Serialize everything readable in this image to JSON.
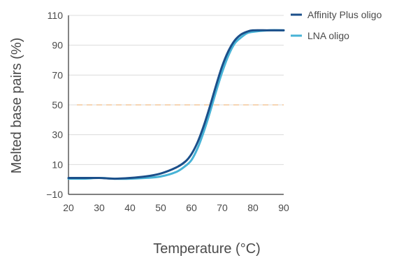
{
  "chart_data": {
    "type": "line",
    "title": "",
    "xlabel": "Temperature (°C)",
    "ylabel": "Melted base pairs (%)",
    "xlim": [
      20,
      90
    ],
    "ylim": [
      -10,
      110
    ],
    "xticks": [
      "20",
      "30",
      "40",
      "50",
      "60",
      "70",
      "80",
      "90"
    ],
    "yticks": [
      "−10",
      "10",
      "30",
      "50",
      "70",
      "90",
      "110"
    ],
    "grid": "horizontal",
    "legend_position": "top-right",
    "reference_line": {
      "y": 50,
      "style": "dashed",
      "color": "#f4c79a"
    },
    "series": [
      {
        "name": "Affinity Plus oligo",
        "color": "#1b4f8a",
        "x": [
          20,
          25,
          30,
          35,
          40,
          45,
          50,
          55,
          58,
          60,
          62,
          64,
          66,
          68,
          70,
          72,
          74,
          76,
          78,
          80,
          85,
          90
        ],
        "y": [
          1,
          1,
          1,
          0.5,
          1,
          2,
          4,
          8,
          12,
          17,
          25,
          36,
          49,
          63,
          76,
          86,
          93,
          97,
          99,
          100,
          100,
          100
        ]
      },
      {
        "name": "LNA oligo",
        "color": "#47b3d6",
        "x": [
          20,
          25,
          30,
          35,
          40,
          45,
          50,
          55,
          58,
          60,
          62,
          64,
          66,
          68,
          70,
          72,
          74,
          76,
          78,
          80,
          85,
          90
        ],
        "y": [
          0.5,
          0.5,
          1,
          0.5,
          0.5,
          1,
          2,
          5,
          9,
          13,
          21,
          32,
          45,
          59,
          72,
          83,
          91,
          95,
          98,
          99,
          100,
          100
        ]
      }
    ]
  }
}
